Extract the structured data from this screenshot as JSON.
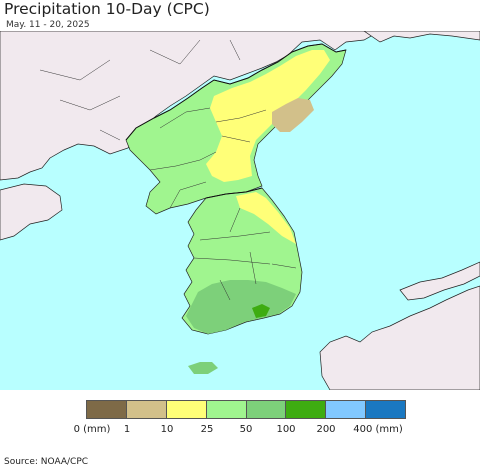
{
  "title": "Precipitation 10-Day (CPC)",
  "subtitle": "May. 11 - 20, 2025",
  "source": "Source: NOAA/CPC",
  "colors": {
    "sea": "#b8ffff",
    "foreign_land": "#f1e9ee",
    "border": "#111111"
  },
  "legend": {
    "colors": [
      "#7e6a47",
      "#d2c08a",
      "#ffff78",
      "#a0f58f",
      "#7dd07a",
      "#3eac11",
      "#81c8ff",
      "#1a78c1"
    ],
    "ticks": [
      "0 (mm)",
      "1",
      "10",
      "25",
      "50",
      "100",
      "200",
      "400 (mm)"
    ]
  }
}
